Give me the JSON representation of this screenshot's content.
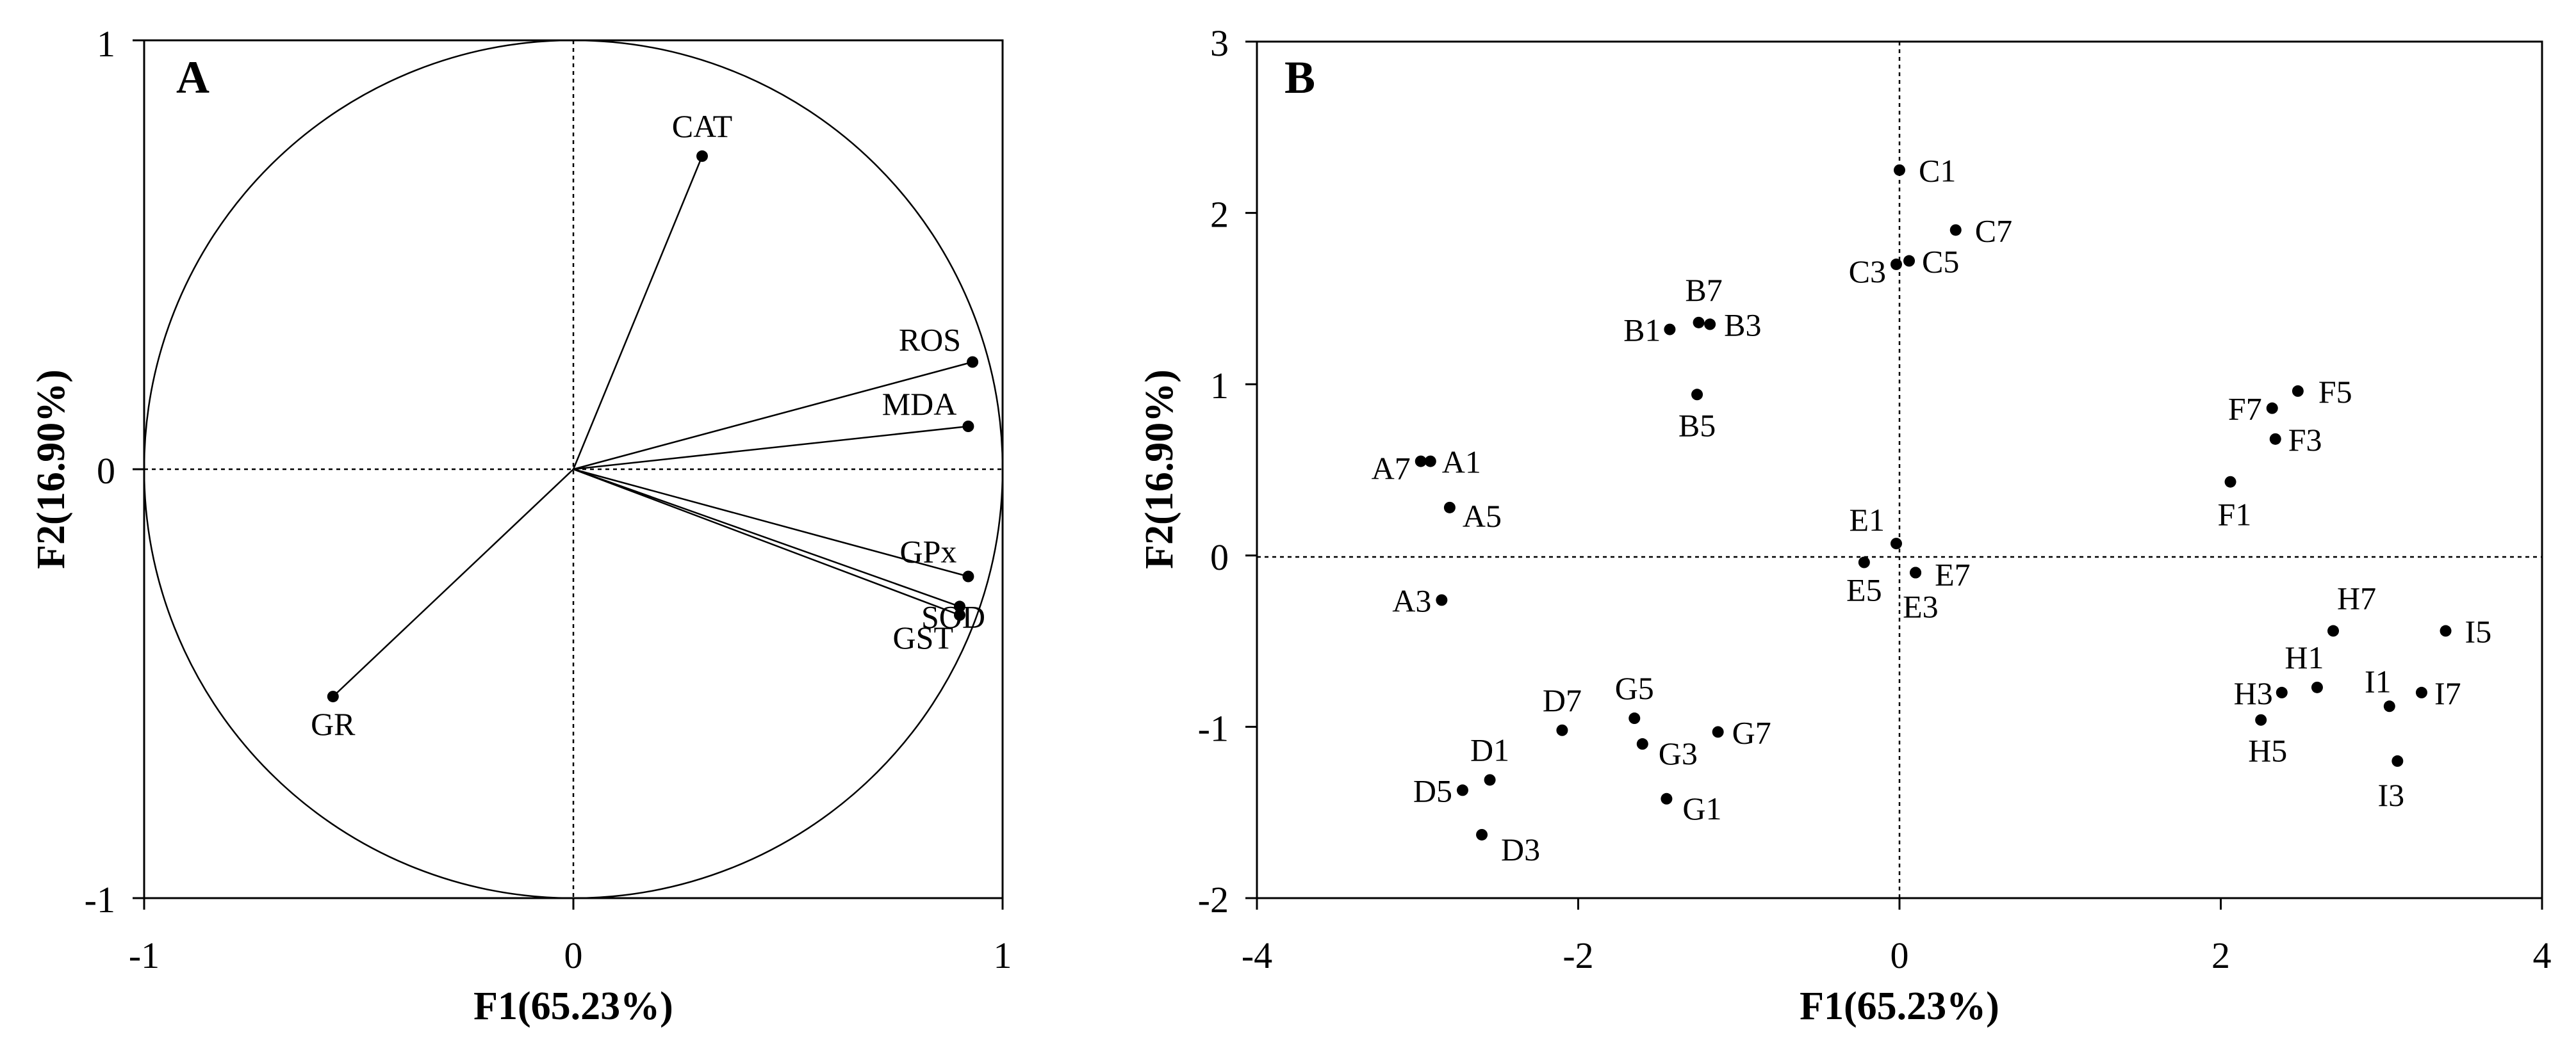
{
  "chart_data": [
    {
      "type": "scatter",
      "panel": "A",
      "subtype": "correlation circle",
      "xlabel": "F1(65.23%)",
      "ylabel": "F2(16.90%)",
      "xlim": [
        -1,
        1
      ],
      "ylim": [
        -1,
        1
      ],
      "xticks": [
        "-1",
        "0",
        "1"
      ],
      "yticks": [
        "-1",
        "0",
        "1"
      ],
      "unit_circle": true,
      "vectors_from_origin": true,
      "grid": false,
      "points": [
        {
          "label": "CAT",
          "x": 0.3,
          "y": 0.73
        },
        {
          "label": "ROS",
          "x": 0.93,
          "y": 0.25
        },
        {
          "label": "MDA",
          "x": 0.92,
          "y": 0.1
        },
        {
          "label": "GPx",
          "x": 0.92,
          "y": -0.25
        },
        {
          "label": "SOD",
          "x": 0.9,
          "y": -0.32
        },
        {
          "label": "GST",
          "x": 0.9,
          "y": -0.34
        },
        {
          "label": "GR",
          "x": -0.56,
          "y": -0.53
        }
      ]
    },
    {
      "type": "scatter",
      "panel": "B",
      "subtype": "score plot",
      "xlabel": "F1(65.23%)",
      "ylabel": "F2(16.90%)",
      "xlim": [
        -4,
        4
      ],
      "ylim": [
        -2,
        3
      ],
      "xticks": [
        "-4",
        "-2",
        "0",
        "2",
        "4"
      ],
      "yticks": [
        "-2",
        "-1",
        "0",
        "1",
        "2",
        "3"
      ],
      "grid": false,
      "points": [
        {
          "label": "C1",
          "x": 0.0,
          "y": 2.25
        },
        {
          "label": "C7",
          "x": 0.35,
          "y": 1.9
        },
        {
          "label": "C3",
          "x": -0.02,
          "y": 1.7
        },
        {
          "label": "C5",
          "x": 0.06,
          "y": 1.72
        },
        {
          "label": "B7",
          "x": -1.25,
          "y": 1.36
        },
        {
          "label": "B1",
          "x": -1.43,
          "y": 1.32
        },
        {
          "label": "B3",
          "x": -1.18,
          "y": 1.35
        },
        {
          "label": "B5",
          "x": -1.26,
          "y": 0.94
        },
        {
          "label": "F5",
          "x": 2.48,
          "y": 0.96
        },
        {
          "label": "F7",
          "x": 2.32,
          "y": 0.86
        },
        {
          "label": "F3",
          "x": 2.34,
          "y": 0.68
        },
        {
          "label": "F1",
          "x": 2.06,
          "y": 0.43
        },
        {
          "label": "A7",
          "x": -2.98,
          "y": 0.55
        },
        {
          "label": "A1",
          "x": -2.92,
          "y": 0.55
        },
        {
          "label": "A5",
          "x": -2.8,
          "y": 0.28
        },
        {
          "label": "A3",
          "x": -2.85,
          "y": -0.26
        },
        {
          "label": "E1",
          "x": -0.02,
          "y": 0.07
        },
        {
          "label": "E5",
          "x": -0.22,
          "y": -0.04
        },
        {
          "label": "E7",
          "x": 0.1,
          "y": -0.1
        },
        {
          "label": "E3",
          "x": 0.1,
          "y": -0.1
        },
        {
          "label": "H7",
          "x": 2.7,
          "y": -0.44
        },
        {
          "label": "H1",
          "x": 2.6,
          "y": -0.77
        },
        {
          "label": "H3",
          "x": 2.38,
          "y": -0.8
        },
        {
          "label": "H5",
          "x": 2.25,
          "y": -0.96
        },
        {
          "label": "I5",
          "x": 3.4,
          "y": -0.44
        },
        {
          "label": "I1",
          "x": 3.05,
          "y": -0.88
        },
        {
          "label": "I7",
          "x": 3.25,
          "y": -0.8
        },
        {
          "label": "I3",
          "x": 3.1,
          "y": -1.2
        },
        {
          "label": "G5",
          "x": -1.65,
          "y": -0.95
        },
        {
          "label": "G3",
          "x": -1.6,
          "y": -1.1
        },
        {
          "label": "G7",
          "x": -1.13,
          "y": -1.03
        },
        {
          "label": "G1",
          "x": -1.45,
          "y": -1.42
        },
        {
          "label": "D7",
          "x": -2.1,
          "y": -1.02
        },
        {
          "label": "D1",
          "x": -2.55,
          "y": -1.31
        },
        {
          "label": "D5",
          "x": -2.72,
          "y": -1.37
        },
        {
          "label": "D3",
          "x": -2.6,
          "y": -1.63
        }
      ]
    }
  ]
}
